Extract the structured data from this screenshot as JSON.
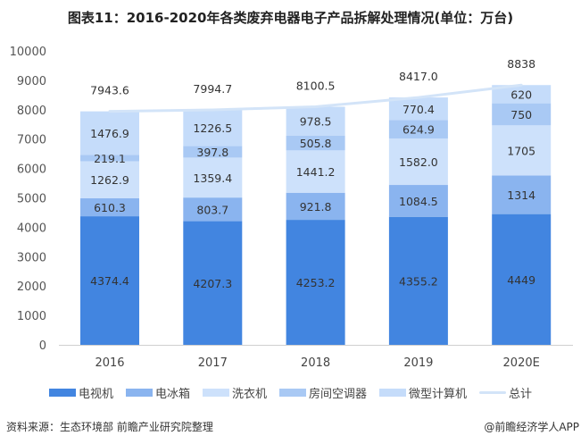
{
  "title": "图表11：2016-2020年各类废弃电器电子产品拆解处理情况(单位：万台)",
  "chart_data": {
    "type": "bar",
    "stacked": true,
    "title": "图表11：2016-2020年各类废弃电器电子产品拆解处理情况(单位：万台)",
    "categories": [
      "2016",
      "2017",
      "2018",
      "2019",
      "2020E"
    ],
    "ylim": [
      0,
      10000
    ],
    "yticks": [
      0,
      1000,
      2000,
      3000,
      4000,
      5000,
      6000,
      7000,
      8000,
      9000,
      10000
    ],
    "grid": false,
    "legend": "bottom",
    "series": [
      {
        "name": "电视机",
        "color": "#4285e0",
        "values": [
          4374.4,
          4207.3,
          4253.2,
          4355.2,
          4449
        ],
        "labels": [
          "4374.4",
          "4207.3",
          "4253.2",
          "4355.2",
          "4449"
        ]
      },
      {
        "name": "电冰箱",
        "color": "#8ab4ef",
        "values": [
          610.3,
          803.7,
          921.8,
          1084.5,
          1314
        ],
        "labels": [
          "610.3",
          "803.7",
          "921.8",
          "1084.5",
          "1314"
        ]
      },
      {
        "name": "洗衣机",
        "color": "#cde1fb",
        "values": [
          1262.9,
          1359.4,
          1441.2,
          1582.0,
          1705
        ],
        "labels": [
          "1262.9",
          "1359.4",
          "1441.2",
          "1582.0",
          "1705"
        ]
      },
      {
        "name": "房间空调器",
        "color": "#a9c9f4",
        "values": [
          219.1,
          397.8,
          505.8,
          624.9,
          750
        ],
        "labels": [
          "219.1",
          "397.8",
          "505.8",
          "624.9",
          "750"
        ]
      },
      {
        "name": "微型计算机",
        "color": "#c5dcfa",
        "values": [
          1476.9,
          1226.5,
          978.5,
          770.4,
          620
        ],
        "labels": [
          "1476.9",
          "1226.5",
          "978.5",
          "770.4",
          "620"
        ]
      }
    ],
    "total": {
      "name": "总计",
      "type": "line",
      "color": "#d3e4f8",
      "values": [
        7943.6,
        7994.7,
        8100.5,
        8417.0,
        8838
      ],
      "labels": [
        "7943.6",
        "7994.7",
        "8100.5",
        "8417.0",
        "8838"
      ]
    }
  },
  "source": "资料来源：生态环境部 前瞻产业研究院整理",
  "brand": "@前瞻经济学人APP"
}
